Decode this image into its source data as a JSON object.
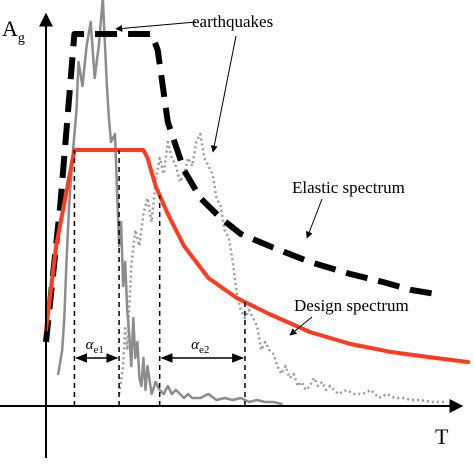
{
  "chart_data": {
    "type": "line",
    "title": "",
    "xlabel": "T",
    "ylabel": "Ag",
    "ylabel_parts": {
      "base": "A",
      "sub": "g"
    },
    "grid": false,
    "legend": "none",
    "note": "Qualitative response-spectrum sketch with no numeric tick labels; values are expressed in relative units (period T from 0 to 100, spectral acceleration Ag from 0 to 100).",
    "x_range": [
      0,
      100
    ],
    "y_range": [
      0,
      100
    ],
    "series": [
      {
        "name": "Elastic spectrum",
        "role": "elastic",
        "color": "#000000",
        "style": "thick-dashed",
        "points": [
          [
            0,
            16
          ],
          [
            3.5,
            50
          ],
          [
            7,
            93
          ],
          [
            26,
            93
          ],
          [
            27.5,
            89
          ],
          [
            30,
            71
          ],
          [
            34,
            59
          ],
          [
            38,
            52
          ],
          [
            43,
            47
          ],
          [
            48,
            43
          ],
          [
            55,
            40
          ],
          [
            65,
            36
          ],
          [
            75,
            33
          ],
          [
            83,
            31
          ],
          [
            90,
            29
          ],
          [
            96,
            28
          ]
        ]
      },
      {
        "name": "Design spectrum",
        "role": "design",
        "color": "#ff3b1f",
        "style": "solid",
        "points": [
          [
            0,
            19
          ],
          [
            2.5,
            40
          ],
          [
            7,
            64
          ],
          [
            24,
            64
          ],
          [
            25,
            62
          ],
          [
            27,
            55
          ],
          [
            30,
            48
          ],
          [
            34,
            40
          ],
          [
            40,
            32
          ],
          [
            47,
            27
          ],
          [
            55,
            23
          ],
          [
            65,
            18.5
          ],
          [
            75,
            15.5
          ],
          [
            85,
            13.5
          ],
          [
            96,
            12
          ],
          [
            104,
            11
          ]
        ]
      },
      {
        "name": "",
        "role": "recorded-1",
        "color": "#8c8c8c",
        "style": "solid",
        "points": [
          [
            3,
            8
          ],
          [
            4,
            14
          ],
          [
            4.5,
            22
          ],
          [
            5,
            35
          ],
          [
            5.7,
            50
          ],
          [
            6.5,
            62
          ],
          [
            7.5,
            74
          ],
          [
            8,
            86
          ],
          [
            9,
            80
          ],
          [
            10,
            90
          ],
          [
            11,
            96
          ],
          [
            12,
            82
          ],
          [
            13,
            90
          ],
          [
            14,
            102
          ],
          [
            15,
            80
          ],
          [
            15.5,
            72
          ],
          [
            16,
            66
          ],
          [
            17,
            68
          ],
          [
            17.5,
            54
          ],
          [
            18,
            40
          ],
          [
            18.5,
            46
          ],
          [
            19,
            30
          ],
          [
            19.5,
            36
          ],
          [
            20,
            24
          ],
          [
            20.5,
            18
          ],
          [
            21,
            10
          ],
          [
            21.5,
            22
          ],
          [
            22,
            12
          ],
          [
            22.5,
            16
          ],
          [
            23,
            7
          ],
          [
            23.5,
            5
          ],
          [
            24,
            12
          ],
          [
            24.5,
            4
          ],
          [
            25,
            10
          ],
          [
            26,
            3
          ],
          [
            27,
            6
          ],
          [
            28,
            4
          ],
          [
            29,
            3
          ],
          [
            30,
            5
          ],
          [
            31,
            3
          ],
          [
            32,
            4
          ],
          [
            33,
            3
          ],
          [
            34,
            2
          ],
          [
            35,
            3
          ],
          [
            36,
            2
          ],
          [
            38,
            2
          ],
          [
            40,
            3
          ],
          [
            42,
            1.5
          ],
          [
            44,
            2
          ],
          [
            46,
            1.5
          ],
          [
            48,
            2
          ],
          [
            50,
            1
          ],
          [
            52,
            1.5
          ],
          [
            54,
            1
          ],
          [
            56,
            1
          ],
          [
            58,
            0.5
          ]
        ]
      },
      {
        "name": "",
        "role": "recorded-2",
        "color": "#999999",
        "style": "dotted",
        "points": [
          [
            18,
            3
          ],
          [
            19,
            10
          ],
          [
            19.5,
            20
          ],
          [
            20,
            14
          ],
          [
            21,
            35
          ],
          [
            22,
            44
          ],
          [
            23,
            40
          ],
          [
            24,
            48
          ],
          [
            25,
            52
          ],
          [
            26,
            46
          ],
          [
            27,
            56
          ],
          [
            28,
            62
          ],
          [
            29,
            58
          ],
          [
            30,
            66
          ],
          [
            31,
            62
          ],
          [
            32,
            60
          ],
          [
            33,
            56
          ],
          [
            34,
            58
          ],
          [
            35,
            62
          ],
          [
            36,
            60
          ],
          [
            37,
            66
          ],
          [
            38,
            68
          ],
          [
            39,
            62
          ],
          [
            40,
            60
          ],
          [
            41,
            58
          ],
          [
            42,
            52
          ],
          [
            43,
            50
          ],
          [
            44,
            44
          ],
          [
            45,
            42
          ],
          [
            46,
            36
          ],
          [
            47,
            28
          ],
          [
            48,
            24
          ],
          [
            49,
            22
          ],
          [
            50,
            24
          ],
          [
            51,
            22
          ],
          [
            52,
            20
          ],
          [
            53,
            14
          ],
          [
            54,
            16
          ],
          [
            55,
            14
          ],
          [
            56,
            13
          ],
          [
            57,
            10
          ],
          [
            58,
            8
          ],
          [
            59,
            10
          ],
          [
            60,
            7
          ],
          [
            61,
            8
          ],
          [
            62,
            5
          ],
          [
            63,
            6
          ],
          [
            64,
            4
          ],
          [
            65,
            5
          ],
          [
            66,
            7
          ],
          [
            67,
            5
          ],
          [
            68,
            6
          ],
          [
            69,
            4
          ],
          [
            70,
            5
          ],
          [
            72,
            3
          ],
          [
            74,
            4
          ],
          [
            76,
            3
          ],
          [
            78,
            3
          ],
          [
            80,
            4
          ],
          [
            82,
            2
          ],
          [
            84,
            3
          ],
          [
            86,
            2
          ],
          [
            88,
            2
          ],
          [
            90,
            1.5
          ],
          [
            92,
            1.5
          ],
          [
            95,
            1
          ],
          [
            98,
            1
          ]
        ]
      }
    ],
    "intervals": [
      {
        "label_base": "α",
        "label_sub": "e1",
        "x_start": 7,
        "x_end": 18,
        "y_level": 12
      },
      {
        "label_base": "α",
        "label_sub": "e2",
        "x_start": 28,
        "x_end": 49,
        "y_level": 12
      }
    ],
    "annotations": [
      {
        "text": "earthquakes",
        "points_to": "recorded-1",
        "arrow_from": [
          19,
          102
        ],
        "arrow_to": [
          15,
          100
        ]
      },
      {
        "text": "earthquakes",
        "points_to": "recorded-2",
        "arrow_from": [
          46,
          102
        ],
        "arrow_to": [
          39,
          66
        ]
      },
      {
        "text": "Elastic spectrum",
        "points_to": "elastic",
        "arrow_from": [
          70,
          52
        ],
        "arrow_to": [
          63,
          36
        ]
      },
      {
        "text": "Design spectrum",
        "points_to": "design",
        "arrow_from": [
          66,
          22
        ],
        "arrow_to": [
          58,
          15
        ]
      }
    ]
  },
  "labels": {
    "x_axis": "T",
    "y_axis_base": "A",
    "y_axis_sub": "g",
    "earthquakes": "earthquakes",
    "elastic": "Elastic spectrum",
    "design": "Design spectrum",
    "alpha": "α",
    "alpha_e1_sub": "e1",
    "alpha_e2_sub": "e2"
  }
}
